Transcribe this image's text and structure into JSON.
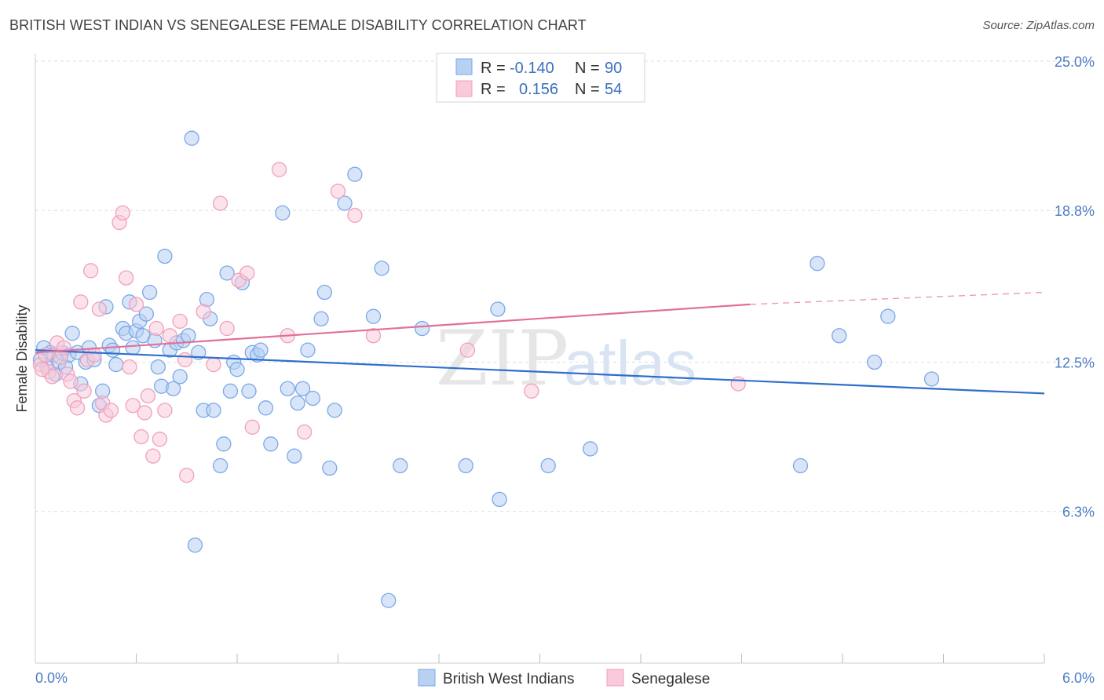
{
  "title": "BRITISH WEST INDIAN VS SENEGALESE FEMALE DISABILITY CORRELATION CHART",
  "source": "Source: ZipAtlas.com",
  "chart_data": {
    "type": "scatter",
    "ylabel": "Female Disability",
    "xlim": [
      0.0,
      6.0
    ],
    "ylim": [
      0.0,
      25.0
    ],
    "x_tick_labels": [
      "0.0%",
      "6.0%"
    ],
    "y_ticks": [
      6.3,
      12.5,
      18.8,
      25.0
    ],
    "y_tick_labels": [
      "6.3%",
      "12.5%",
      "18.8%",
      "25.0%"
    ],
    "grid": "horizontal-dashed",
    "watermark": "ZIPatlas",
    "legend": {
      "position": "top-center",
      "entries": [
        {
          "r_label": "R =",
          "r_value": "-0.140",
          "n_label": "N =",
          "n_value": "90"
        },
        {
          "r_label": "R =",
          "r_value": "0.156",
          "n_label": "N =",
          "n_value": "54"
        }
      ]
    },
    "series": [
      {
        "name": "British West Indians",
        "color": "#7aa8e8",
        "fill": "#b8d0f2",
        "trend_color": "#2f6fcc",
        "trend": {
          "x0": 0.0,
          "y0": 13.0,
          "x1": 6.0,
          "y1": 11.2
        },
        "points": [
          [
            0.03,
            12.6
          ],
          [
            0.05,
            13.1
          ],
          [
            0.07,
            12.3
          ],
          [
            0.09,
            12.9
          ],
          [
            0.11,
            12.8
          ],
          [
            0.12,
            12.0
          ],
          [
            0.14,
            12.5
          ],
          [
            0.16,
            12.9
          ],
          [
            0.18,
            12.3
          ],
          [
            0.2,
            12.8
          ],
          [
            0.22,
            13.7
          ],
          [
            0.25,
            12.9
          ],
          [
            0.27,
            11.6
          ],
          [
            0.3,
            12.5
          ],
          [
            0.32,
            13.1
          ],
          [
            0.35,
            12.6
          ],
          [
            0.38,
            10.7
          ],
          [
            0.4,
            11.3
          ],
          [
            0.42,
            14.8
          ],
          [
            0.44,
            13.2
          ],
          [
            0.46,
            13.0
          ],
          [
            0.48,
            12.4
          ],
          [
            0.52,
            13.9
          ],
          [
            0.54,
            13.7
          ],
          [
            0.56,
            15.0
          ],
          [
            0.58,
            13.1
          ],
          [
            0.6,
            13.8
          ],
          [
            0.62,
            14.2
          ],
          [
            0.64,
            13.6
          ],
          [
            0.66,
            14.5
          ],
          [
            0.68,
            15.4
          ],
          [
            0.71,
            13.4
          ],
          [
            0.73,
            12.3
          ],
          [
            0.75,
            11.5
          ],
          [
            0.77,
            16.9
          ],
          [
            0.8,
            13.0
          ],
          [
            0.82,
            11.4
          ],
          [
            0.84,
            13.3
          ],
          [
            0.86,
            11.9
          ],
          [
            0.88,
            13.4
          ],
          [
            0.91,
            13.6
          ],
          [
            0.93,
            21.8
          ],
          [
            0.95,
            4.9
          ],
          [
            0.97,
            12.9
          ],
          [
            1.0,
            10.5
          ],
          [
            1.02,
            15.1
          ],
          [
            1.04,
            14.3
          ],
          [
            1.06,
            10.5
          ],
          [
            1.1,
            8.2
          ],
          [
            1.12,
            9.1
          ],
          [
            1.14,
            16.2
          ],
          [
            1.16,
            11.3
          ],
          [
            1.18,
            12.5
          ],
          [
            1.2,
            12.2
          ],
          [
            1.23,
            15.8
          ],
          [
            1.27,
            11.3
          ],
          [
            1.29,
            12.9
          ],
          [
            1.32,
            12.8
          ],
          [
            1.34,
            13.0
          ],
          [
            1.37,
            10.6
          ],
          [
            1.4,
            9.1
          ],
          [
            1.47,
            18.7
          ],
          [
            1.5,
            11.4
          ],
          [
            1.54,
            8.6
          ],
          [
            1.56,
            10.8
          ],
          [
            1.59,
            11.4
          ],
          [
            1.62,
            13.0
          ],
          [
            1.65,
            11.0
          ],
          [
            1.7,
            14.3
          ],
          [
            1.72,
            15.4
          ],
          [
            1.75,
            8.1
          ],
          [
            1.78,
            10.5
          ],
          [
            1.84,
            19.1
          ],
          [
            1.9,
            20.3
          ],
          [
            2.01,
            14.4
          ],
          [
            2.06,
            16.4
          ],
          [
            2.1,
            2.6
          ],
          [
            2.17,
            8.2
          ],
          [
            2.3,
            13.9
          ],
          [
            2.56,
            8.2
          ],
          [
            2.75,
            14.7
          ],
          [
            2.76,
            6.8
          ],
          [
            3.05,
            8.2
          ],
          [
            3.3,
            8.9
          ],
          [
            4.55,
            8.2
          ],
          [
            4.65,
            16.6
          ],
          [
            4.78,
            13.6
          ],
          [
            4.99,
            12.5
          ],
          [
            5.07,
            14.4
          ],
          [
            5.33,
            11.8
          ]
        ]
      },
      {
        "name": "Senegalese",
        "color": "#f0a0bc",
        "fill": "#f8cadb",
        "trend_color": "#e0709a",
        "trend": {
          "x0": 0.0,
          "y0": 12.9,
          "x1": 4.25,
          "y1": 14.9
        },
        "trend_ext": {
          "x0": 4.25,
          "y0": 14.9,
          "x1": 6.0,
          "y1": 15.4
        },
        "points": [
          [
            0.03,
            12.4
          ],
          [
            0.06,
            12.8
          ],
          [
            0.08,
            12.1
          ],
          [
            0.1,
            11.9
          ],
          [
            0.13,
            13.3
          ],
          [
            0.15,
            12.7
          ],
          [
            0.17,
            13.1
          ],
          [
            0.19,
            12.0
          ],
          [
            0.21,
            11.7
          ],
          [
            0.23,
            10.9
          ],
          [
            0.25,
            10.6
          ],
          [
            0.27,
            15.0
          ],
          [
            0.29,
            11.3
          ],
          [
            0.31,
            12.6
          ],
          [
            0.33,
            16.3
          ],
          [
            0.35,
            12.8
          ],
          [
            0.38,
            14.7
          ],
          [
            0.4,
            10.8
          ],
          [
            0.42,
            10.3
          ],
          [
            0.45,
            10.5
          ],
          [
            0.5,
            18.3
          ],
          [
            0.52,
            18.7
          ],
          [
            0.54,
            16.0
          ],
          [
            0.56,
            12.3
          ],
          [
            0.58,
            10.7
          ],
          [
            0.6,
            14.9
          ],
          [
            0.63,
            9.4
          ],
          [
            0.65,
            10.4
          ],
          [
            0.67,
            11.1
          ],
          [
            0.7,
            8.6
          ],
          [
            0.72,
            13.9
          ],
          [
            0.74,
            9.3
          ],
          [
            0.77,
            10.5
          ],
          [
            0.8,
            13.6
          ],
          [
            0.86,
            14.2
          ],
          [
            0.89,
            12.6
          ],
          [
            0.9,
            7.8
          ],
          [
            1.0,
            14.6
          ],
          [
            1.06,
            12.4
          ],
          [
            1.1,
            19.1
          ],
          [
            1.14,
            13.9
          ],
          [
            1.21,
            15.9
          ],
          [
            1.26,
            16.2
          ],
          [
            1.29,
            9.8
          ],
          [
            1.45,
            20.5
          ],
          [
            1.5,
            13.6
          ],
          [
            1.6,
            9.6
          ],
          [
            1.8,
            19.6
          ],
          [
            1.9,
            18.6
          ],
          [
            2.01,
            13.6
          ],
          [
            2.57,
            13.0
          ],
          [
            2.95,
            11.3
          ],
          [
            4.18,
            11.6
          ],
          [
            0.04,
            12.2
          ]
        ]
      }
    ]
  }
}
